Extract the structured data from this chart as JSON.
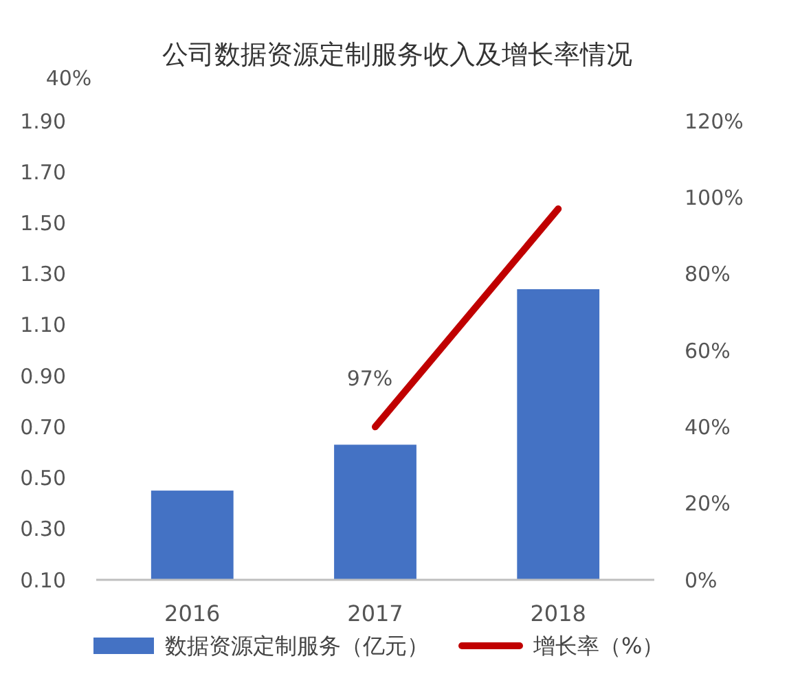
{
  "chart_data": {
    "type": "bar",
    "title": "公司数据资源定制服务收入及增长率情况",
    "categories": [
      "2016",
      "2017",
      "2018"
    ],
    "series": [
      {
        "name": "数据资源定制服务（亿元）",
        "color": "#4472c4",
        "values": [
          0.45,
          0.63,
          1.24
        ]
      },
      {
        "name": "增长率（%）",
        "type": "line",
        "axis": "y2",
        "color": "#c00000",
        "values": [
          null,
          40,
          97
        ]
      }
    ],
    "ylim": [
      0.1,
      1.9
    ],
    "yticks": [
      {
        "value": 0.1,
        "label": "0.10"
      },
      {
        "value": 0.3,
        "label": "0.30"
      },
      {
        "value": 0.5,
        "label": "0.50"
      },
      {
        "value": 0.7,
        "label": "0.70"
      },
      {
        "value": 0.9,
        "label": "0.90"
      },
      {
        "value": 1.1,
        "label": "1.10"
      },
      {
        "value": 1.3,
        "label": "1.30"
      },
      {
        "value": 1.5,
        "label": "1.50"
      },
      {
        "value": 1.7,
        "label": "1.70"
      },
      {
        "value": 1.9,
        "label": "1.90"
      }
    ],
    "y2lim": [
      0,
      120
    ],
    "y2ticks": [
      {
        "value": 0,
        "label": "0%"
      },
      {
        "value": 20,
        "label": "20%"
      },
      {
        "value": 40,
        "label": "40%"
      },
      {
        "value": 60,
        "label": "60%"
      },
      {
        "value": 80,
        "label": "80%"
      },
      {
        "value": 100,
        "label": "100%"
      },
      {
        "value": 120,
        "label": "120%"
      }
    ],
    "annotations": [
      "40%",
      "97%"
    ],
    "legend": "bottom",
    "grid": false
  }
}
